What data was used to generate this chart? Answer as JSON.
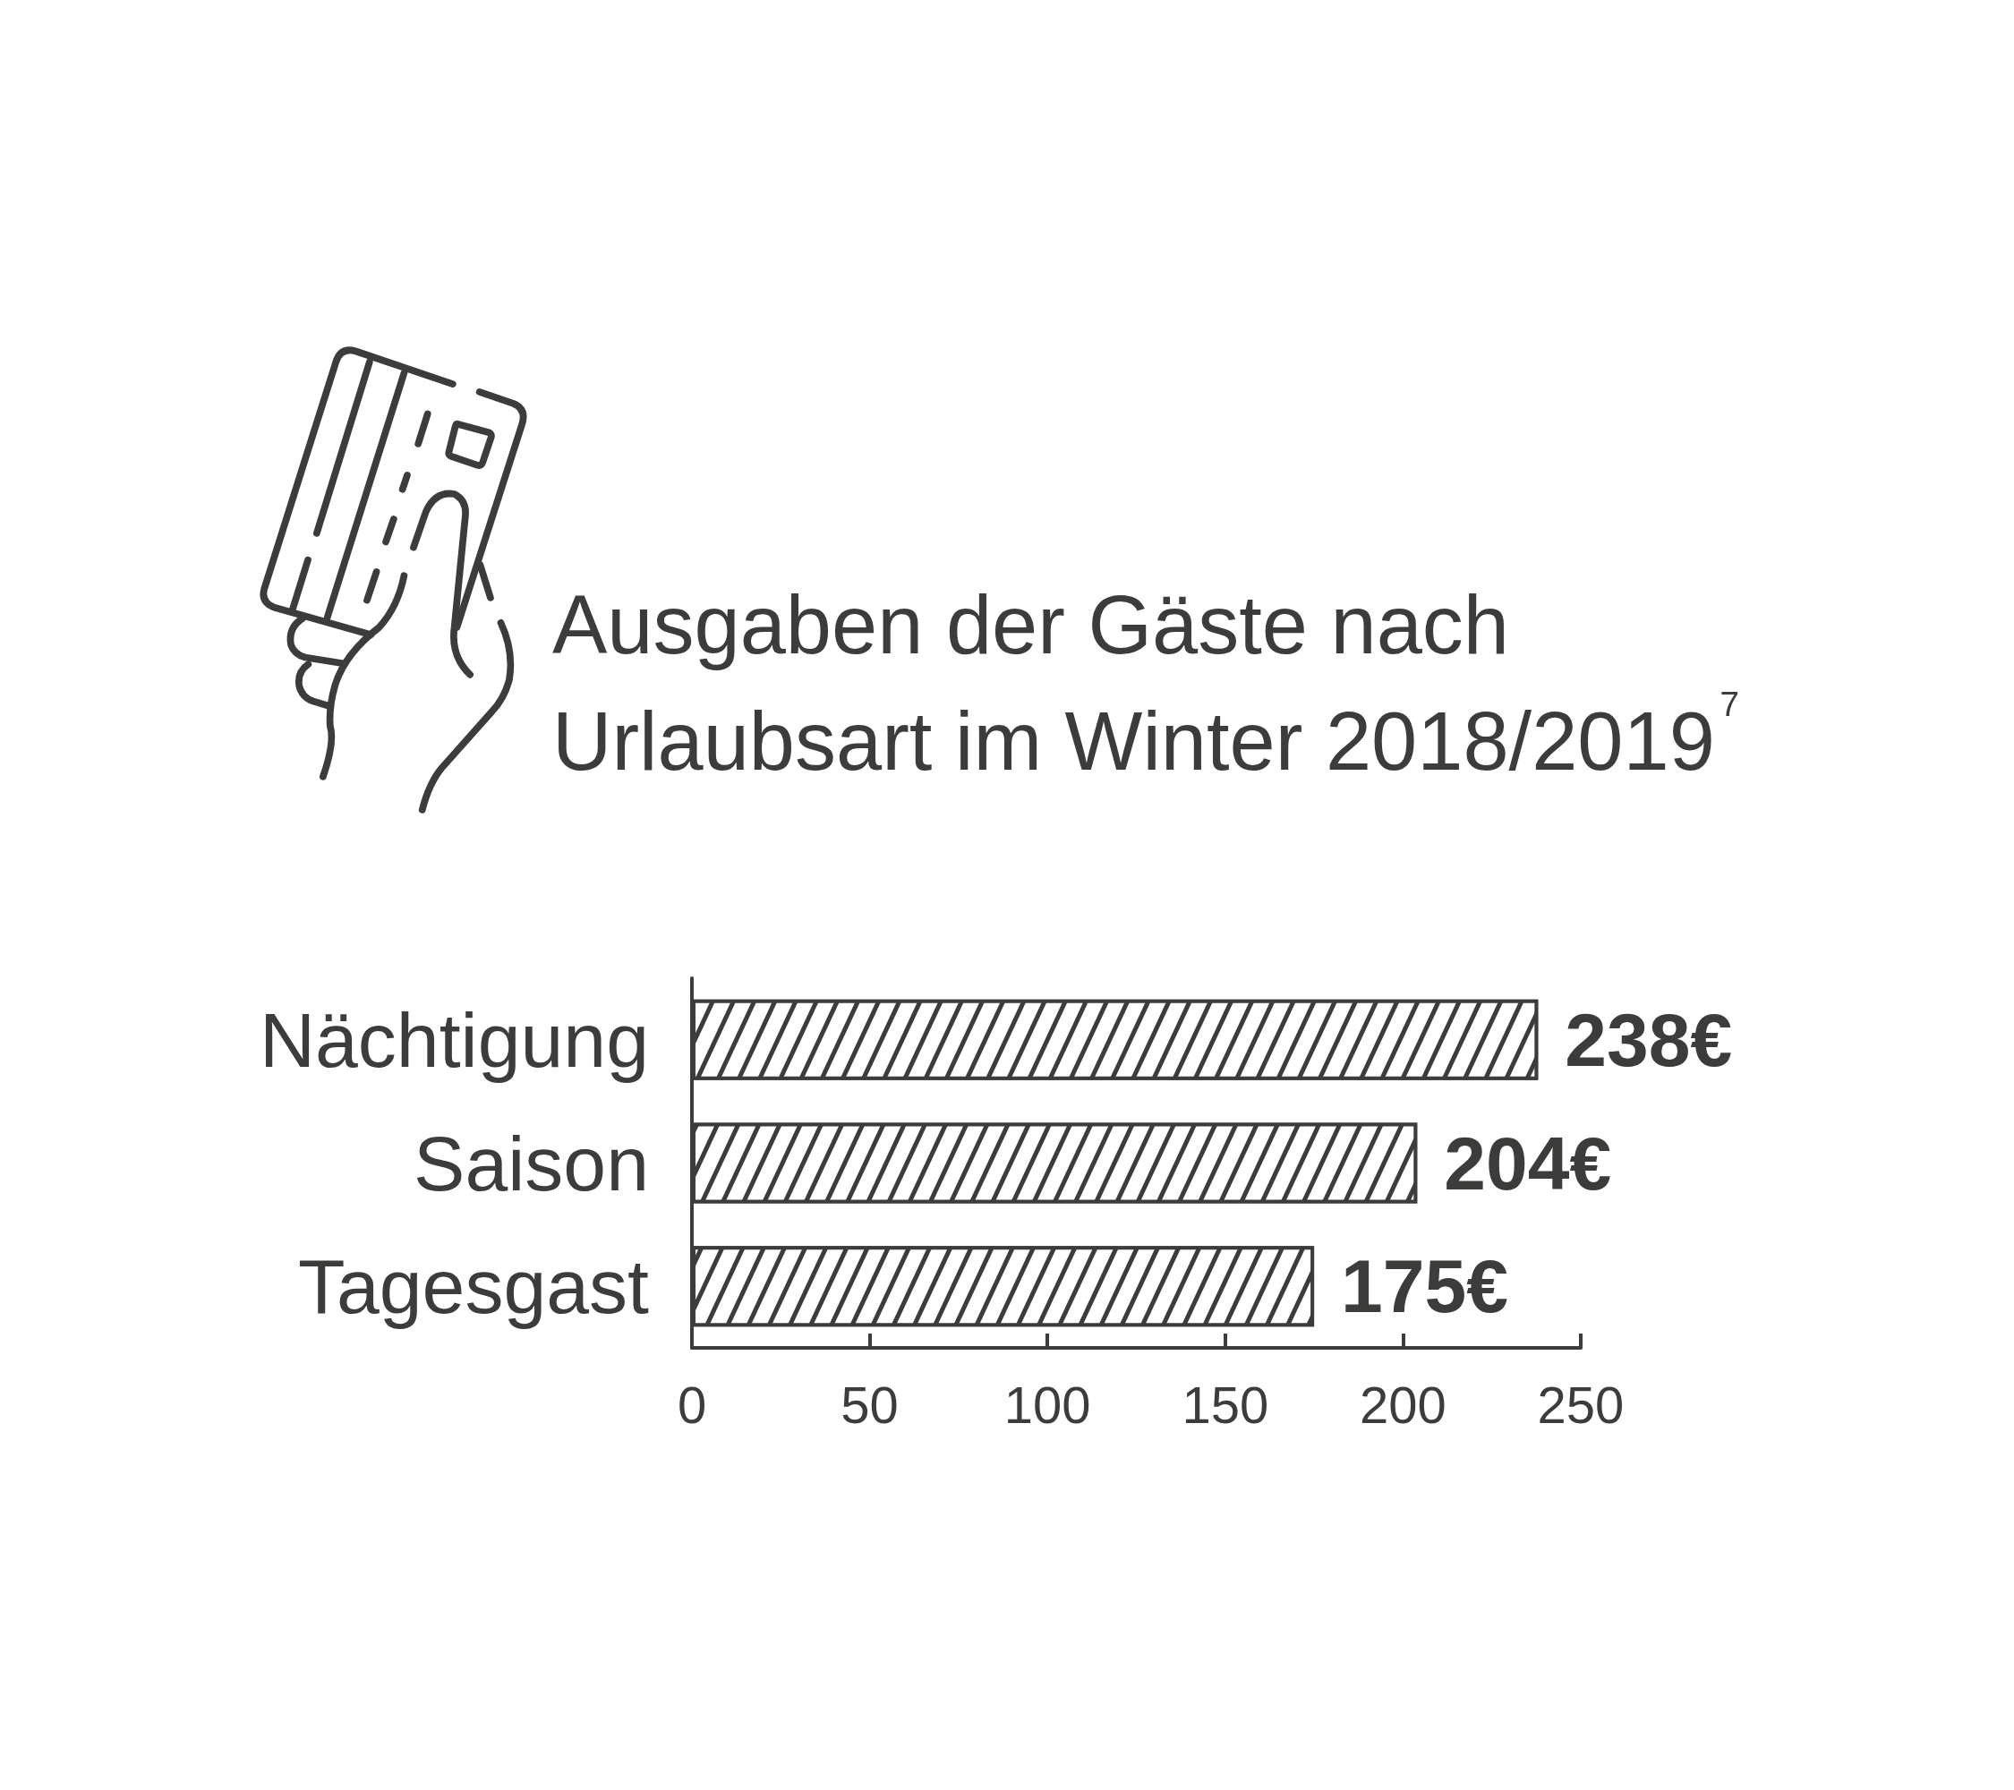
{
  "chart_data": {
    "type": "bar",
    "title": "Ausgaben der Gäste nach Urlaubsart im Winter 2018/2019$^{7}$",
    "categories": [
      "Nächtigung",
      "Saison",
      "Tagesgast"
    ],
    "orientation": "horizontal",
    "values": [
      238,
      204,
      175
    ],
    "value_labels": [
      "238€",
      "204€",
      "175€"
    ],
    "color": "#3c3c3b",
    "xlim": [
      0,
      250
    ],
    "xticks": [
      0,
      50,
      100,
      150,
      200,
      250
    ]
  }
}
